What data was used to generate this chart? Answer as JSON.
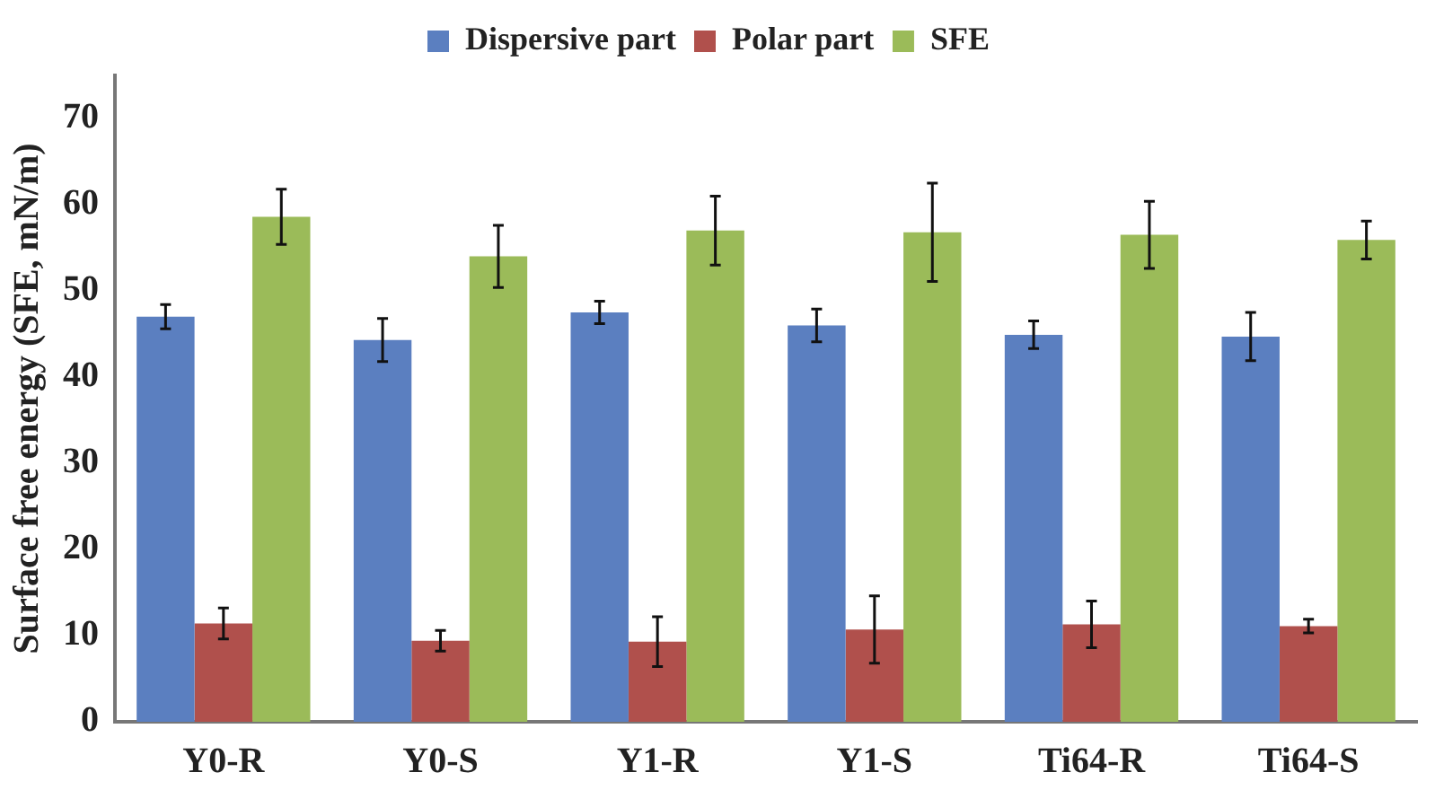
{
  "chart_data": {
    "type": "bar",
    "ylabel": "Surface free energy (SFE, mN/m)",
    "categories": [
      "Y0-R",
      "Y0-S",
      "Y1-R",
      "Y1-S",
      "Ti64-R",
      "Ti64-S"
    ],
    "series": [
      {
        "name": "Dispersive part",
        "color": "#5b7fc0",
        "values": [
          47.0,
          44.3,
          47.5,
          46.0,
          44.9,
          44.7
        ],
        "errors": [
          1.4,
          2.5,
          1.3,
          1.9,
          1.6,
          2.8
        ]
      },
      {
        "name": "Polar part",
        "color": "#b0504c",
        "values": [
          11.4,
          9.4,
          9.3,
          10.7,
          11.3,
          11.1
        ],
        "errors": [
          1.8,
          1.2,
          2.9,
          3.9,
          2.7,
          0.8
        ]
      },
      {
        "name": "SFE",
        "color": "#9bbb59",
        "values": [
          58.6,
          54.0,
          57.0,
          56.8,
          56.5,
          55.9
        ],
        "errors": [
          3.2,
          3.6,
          4.0,
          5.7,
          3.9,
          2.2
        ]
      }
    ],
    "ylim": [
      0,
      75
    ],
    "yticks": [
      0,
      10,
      20,
      30,
      40,
      50,
      60,
      70
    ],
    "grid": false,
    "legend": "top"
  }
}
